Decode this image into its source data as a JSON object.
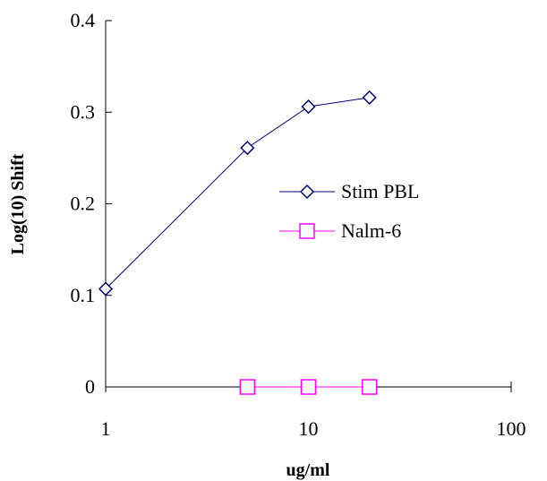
{
  "chart_data": {
    "type": "line",
    "xlabel": "ug/ml",
    "ylabel": "Log(10) Shift",
    "xscale": "log",
    "xlim": [
      1,
      100
    ],
    "ylim": [
      0,
      0.4
    ],
    "xticks": [
      1,
      10,
      100
    ],
    "xtick_labels": [
      "1",
      "10",
      "100"
    ],
    "yticks": [
      0,
      0.1,
      0.2,
      0.3,
      0.4
    ],
    "ytick_labels": [
      "0",
      "0.1",
      "0.2",
      "0.3",
      "0.4"
    ],
    "grid": false,
    "legend_position": "center-right",
    "series": [
      {
        "name": "Stim PBL",
        "color": "#000080",
        "marker": "diamond",
        "x": [
          1,
          5,
          10,
          20
        ],
        "y": [
          0.107,
          0.261,
          0.306,
          0.316
        ]
      },
      {
        "name": "Nalm-6",
        "color": "#FF00FF",
        "marker": "square",
        "x": [
          5,
          10,
          20
        ],
        "y": [
          0,
          0,
          0
        ]
      }
    ]
  }
}
